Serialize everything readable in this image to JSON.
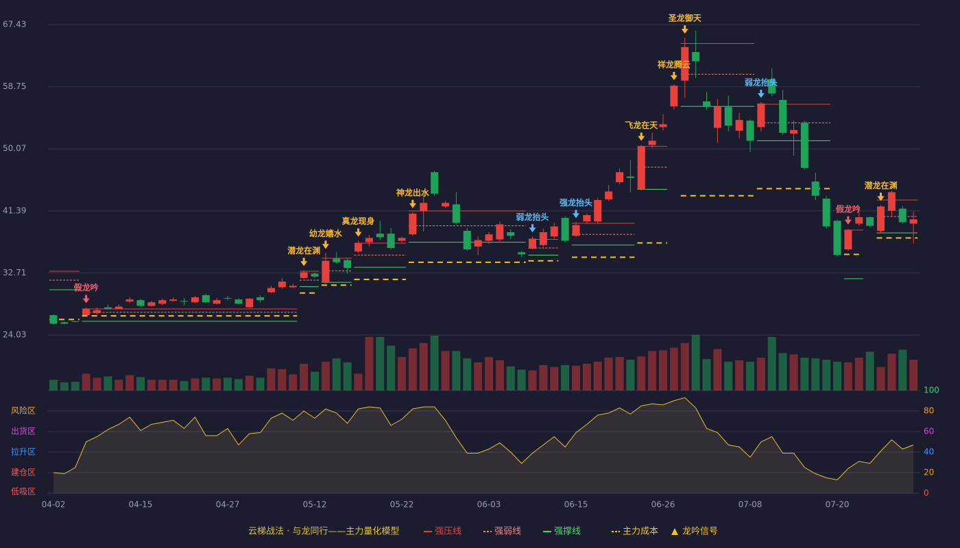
{
  "chart_data": {
    "type": "candlestick",
    "categories": [
      "04-02",
      null,
      null,
      null,
      null,
      null,
      null,
      null,
      "04-15",
      null,
      null,
      null,
      null,
      null,
      null,
      null,
      "04-27",
      null,
      null,
      null,
      null,
      null,
      null,
      null,
      "05-12",
      null,
      null,
      null,
      null,
      null,
      null,
      null,
      "05-22",
      null,
      null,
      null,
      null,
      null,
      null,
      null,
      "06-03",
      null,
      null,
      null,
      null,
      null,
      null,
      null,
      "06-15",
      null,
      null,
      null,
      null,
      null,
      null,
      null,
      "06-26",
      null,
      null,
      null,
      null,
      null,
      null,
      null,
      "07-08",
      null,
      null,
      null,
      null,
      null,
      null,
      null,
      "07-20",
      null,
      null,
      null,
      null,
      null,
      null,
      null
    ],
    "open": [
      26.8,
      25.8,
      25.95,
      26.8,
      27.1,
      27.9,
      27.7,
      28.7,
      28.9,
      28.1,
      28.4,
      28.8,
      28.8,
      28.6,
      29.6,
      28.4,
      29.2,
      29.0,
      27.9,
      29.3,
      30.0,
      30.7,
      30.7,
      32.0,
      32.6,
      31.4,
      34.7,
      34.5,
      35.7,
      37.0,
      38.2,
      38.2,
      37.2,
      38.1,
      41.4,
      46.8,
      42.0,
      42.3,
      38.6,
      36.4,
      37.2,
      37.4,
      38.4,
      35.6,
      36.1,
      36.6,
      37.8,
      40.4,
      37.9,
      39.9,
      39.9,
      43.0,
      45.4,
      46.2,
      44.4,
      50.6,
      53.1,
      56.0,
      59.6,
      63.6,
      56.7,
      53.0,
      55.9,
      52.6,
      54.0,
      53.1,
      59.8,
      56.9,
      52.2,
      53.7,
      45.5,
      43.1,
      40.0,
      36.0,
      39.6,
      40.5,
      38.6,
      41.4,
      41.7,
      39.6
    ],
    "high": [
      26.9,
      25.9,
      26.0,
      27.9,
      27.9,
      28.3,
      28.3,
      29.3,
      29.1,
      28.8,
      29.1,
      29.3,
      29.2,
      29.5,
      29.8,
      29.2,
      29.5,
      29.2,
      29.2,
      29.6,
      30.9,
      32.0,
      31.2,
      33.1,
      32.8,
      35.5,
      35.6,
      34.8,
      37.2,
      38.0,
      40.0,
      39.0,
      37.8,
      41.2,
      43.7,
      47.0,
      42.8,
      44.0,
      39.0,
      37.8,
      38.4,
      39.9,
      38.8,
      35.8,
      37.8,
      38.9,
      39.7,
      40.6,
      39.8,
      41.0,
      43.2,
      45.0,
      47.3,
      48.5,
      50.6,
      52.3,
      54.9,
      59.1,
      65.6,
      66.6,
      58.0,
      57.0,
      57.5,
      55.1,
      54.2,
      56.6,
      61.3,
      58.3,
      54.0,
      54.0,
      46.7,
      43.5,
      40.2,
      38.9,
      42.0,
      40.6,
      42.2,
      44.2,
      42.1,
      41.3
    ],
    "low": [
      25.5,
      25.5,
      25.8,
      26.7,
      26.9,
      27.6,
      27.6,
      28.5,
      27.9,
      28.0,
      28.2,
      28.7,
      28.2,
      28.5,
      28.5,
      28.3,
      28.9,
      28.3,
      27.8,
      28.6,
      29.9,
      30.5,
      30.6,
      31.9,
      32.0,
      31.2,
      34.0,
      32.6,
      35.5,
      36.4,
      37.3,
      36.0,
      37.0,
      37.9,
      38.5,
      43.5,
      41.8,
      39.5,
      35.8,
      35.2,
      36.8,
      37.0,
      37.4,
      34.9,
      36.0,
      36.4,
      37.5,
      37.0,
      37.7,
      39.7,
      39.7,
      42.8,
      45.1,
      44.0,
      44.2,
      50.2,
      52.6,
      55.6,
      57.2,
      60.0,
      55.5,
      50.9,
      52.5,
      51.5,
      49.6,
      52.5,
      57.4,
      52.0,
      49.1,
      47.2,
      42.9,
      38.9,
      35.0,
      35.8,
      39.3,
      39.1,
      38.4,
      40.6,
      39.6,
      36.8
    ],
    "close": [
      25.6,
      25.6,
      25.85,
      27.7,
      27.5,
      27.7,
      28.0,
      29.0,
      28.1,
      28.6,
      28.9,
      29.0,
      28.7,
      29.3,
      28.6,
      28.9,
      29.1,
      28.4,
      29.1,
      28.9,
      30.6,
      31.5,
      30.9,
      32.8,
      32.2,
      34.4,
      34.2,
      33.4,
      36.9,
      37.6,
      37.7,
      36.2,
      37.6,
      41.0,
      42.5,
      43.8,
      42.5,
      39.7,
      36.0,
      37.3,
      38.1,
      39.5,
      37.9,
      35.3,
      37.5,
      38.4,
      39.2,
      37.2,
      39.4,
      40.8,
      42.9,
      44.1,
      46.8,
      46.0,
      50.4,
      51.2,
      53.5,
      58.9,
      64.3,
      62.3,
      55.9,
      56.0,
      53.3,
      54.1,
      51.2,
      56.4,
      57.8,
      52.3,
      52.7,
      47.4,
      43.5,
      39.2,
      35.2,
      38.7,
      40.5,
      39.3,
      42.0,
      44.0,
      39.8,
      40.2
    ],
    "up_color": "#e8413c",
    "down_color": "#1fa35a",
    "ylim": [
      24.03,
      67.43
    ],
    "yticks": [
      24.03,
      32.71,
      41.39,
      50.07,
      58.75,
      67.43
    ],
    "grid": true,
    "volume": [
      16,
      12,
      13,
      25,
      19,
      21,
      16,
      23,
      20,
      16,
      16,
      16,
      14,
      18,
      19,
      18,
      19,
      17,
      22,
      19,
      33,
      32,
      24,
      40,
      28,
      43,
      48,
      42,
      25,
      80,
      80,
      67,
      50,
      63,
      71,
      82,
      59,
      59,
      48,
      42,
      50,
      45,
      36,
      31,
      30,
      38,
      35,
      38,
      37,
      40,
      43,
      49,
      50,
      46,
      51,
      59,
      60,
      64,
      71,
      83,
      47,
      62,
      43,
      45,
      43,
      49,
      80,
      56,
      54,
      49,
      48,
      46,
      43,
      42,
      49,
      58,
      35,
      55,
      61,
      46
    ],
    "lines": [
      {
        "name": "强压线",
        "color": "#e8413c",
        "dashed": false,
        "segments": [
          {
            "from": 0,
            "to": 2,
            "value": 32.94
          },
          {
            "from": 3,
            "to": 22,
            "value": 27.67
          },
          {
            "from": 23,
            "to": 24,
            "value": 32.94
          },
          {
            "from": 25,
            "to": 27,
            "value": 34.76
          },
          {
            "from": 28,
            "to": 32,
            "value": 36.87
          },
          {
            "from": 33,
            "to": 43,
            "value": 41.37
          },
          {
            "from": 44,
            "to": 46,
            "value": 37.4
          },
          {
            "from": 48,
            "to": 53,
            "value": 39.65
          },
          {
            "from": 54,
            "to": 56,
            "value": 50.4
          },
          {
            "from": 58,
            "to": 64,
            "value": 64.8
          },
          {
            "from": 65,
            "to": 71,
            "value": 56.3
          },
          {
            "from": 73,
            "to": 74,
            "value": 38.7
          },
          {
            "from": 76,
            "to": 79,
            "value": 42.9
          }
        ]
      },
      {
        "name": "强弱线",
        "color": "#f08080",
        "dashed": true,
        "segments": [
          {
            "from": 0,
            "to": 2,
            "value": 31.7
          },
          {
            "from": 3,
            "to": 22,
            "value": 27.2
          },
          {
            "from": 23,
            "to": 24,
            "value": 31.7
          },
          {
            "from": 25,
            "to": 27,
            "value": 33.0
          },
          {
            "from": 28,
            "to": 32,
            "value": 35.2
          },
          {
            "from": 33,
            "to": 43,
            "value": 39.3
          },
          {
            "from": 44,
            "to": 46,
            "value": 36.2
          },
          {
            "from": 48,
            "to": 53,
            "value": 38.1
          },
          {
            "from": 54,
            "to": 56,
            "value": 47.5
          },
          {
            "from": 58,
            "to": 64,
            "value": 60.5
          },
          {
            "from": 65,
            "to": 71,
            "value": 53.7
          },
          {
            "from": 76,
            "to": 79,
            "value": 40.6
          }
        ]
      },
      {
        "name": "强撑线",
        "color": "#45d66f",
        "dashed": false,
        "segments": [
          {
            "from": 0,
            "to": 2,
            "value": 30.35
          },
          {
            "from": 3,
            "to": 22,
            "value": 25.95
          },
          {
            "from": 23,
            "to": 24,
            "value": 30.8
          },
          {
            "from": 25,
            "to": 27,
            "value": 31.4
          },
          {
            "from": 28,
            "to": 32,
            "value": 33.5
          },
          {
            "from": 33,
            "to": 43,
            "value": 37.0
          },
          {
            "from": 44,
            "to": 46,
            "value": 35.2
          },
          {
            "from": 48,
            "to": 53,
            "value": 36.6
          },
          {
            "from": 54,
            "to": 56,
            "value": 44.4
          },
          {
            "from": 58,
            "to": 64,
            "value": 56.0
          },
          {
            "from": 65,
            "to": 71,
            "value": 51.2
          },
          {
            "from": 73,
            "to": 74,
            "value": 31.9
          },
          {
            "from": 76,
            "to": 79,
            "value": 38.3
          }
        ]
      },
      {
        "name": "主力成本",
        "color": "#f5c518",
        "dashed": true,
        "segments": [
          {
            "from": 0,
            "to": 2,
            "value": 26.2
          },
          {
            "from": 3,
            "to": 22,
            "value": 26.7
          },
          {
            "from": 23,
            "to": 24,
            "value": 29.9
          },
          {
            "from": 25,
            "to": 27,
            "value": 31.0
          },
          {
            "from": 28,
            "to": 32,
            "value": 31.8
          },
          {
            "from": 33,
            "to": 43,
            "value": 34.2
          },
          {
            "from": 44,
            "to": 46,
            "value": 34.4
          },
          {
            "from": 48,
            "to": 53,
            "value": 34.9
          },
          {
            "from": 54,
            "to": 56,
            "value": 36.9
          },
          {
            "from": 58,
            "to": 64,
            "value": 43.5
          },
          {
            "from": 65,
            "to": 71,
            "value": 44.5
          },
          {
            "from": 73,
            "to": 74,
            "value": 35.3
          },
          {
            "from": 76,
            "to": 79,
            "value": 37.6
          }
        ]
      }
    ],
    "signals": [
      {
        "index": 3,
        "label": "假龙吟",
        "color": "#f0606a"
      },
      {
        "index": 23,
        "label": "潜龙在渊",
        "color": "#f5b82e"
      },
      {
        "index": 25,
        "label": "幼龙嬉水",
        "color": "#f5b82e"
      },
      {
        "index": 28,
        "label": "真龙现身",
        "color": "#f5b82e"
      },
      {
        "index": 33,
        "label": "神龙出水",
        "color": "#f5b82e"
      },
      {
        "index": 44,
        "label": "弱龙抬头",
        "color": "#5bb8f5"
      },
      {
        "index": 48,
        "label": "强龙抬头",
        "color": "#5bb8f5"
      },
      {
        "index": 54,
        "label": "飞龙在天",
        "color": "#f5b82e"
      },
      {
        "index": 57,
        "label": "祥龙腾云",
        "color": "#f5b82e"
      },
      {
        "index": 58,
        "label": "圣龙御天",
        "color": "#f5b82e"
      },
      {
        "index": 65,
        "label": "弱龙抬头",
        "color": "#5bb8f5"
      },
      {
        "index": 73,
        "label": "假龙吟",
        "color": "#f0606a"
      },
      {
        "index": 76,
        "label": "潜龙在渊",
        "color": "#f5b82e"
      }
    ],
    "signal_legend": "龙吟信号",
    "signal_legend_color": "#f5c518",
    "legend_title": "云梯战法 · 与龙同行——主力量化模型",
    "indicator": {
      "values": [
        20,
        19,
        25,
        50,
        55,
        62,
        67,
        74,
        61,
        67,
        69,
        71,
        63,
        74,
        56,
        56,
        63,
        47,
        58,
        59,
        73,
        78,
        71,
        80,
        73,
        82,
        78,
        68,
        82,
        84,
        83,
        66,
        72,
        82,
        84,
        84,
        71,
        54,
        39,
        39,
        43,
        49,
        40,
        29,
        39,
        47,
        55,
        45,
        59,
        67,
        76,
        78,
        83,
        77,
        85,
        87,
        86,
        90,
        93,
        83,
        63,
        59,
        47,
        45,
        35,
        50,
        55,
        39,
        39,
        25,
        19,
        15,
        13,
        24,
        31,
        29,
        41,
        52,
        43,
        47
      ],
      "color": "#e5c22a",
      "ylim": [
        0,
        100
      ],
      "yticks": [
        0,
        20,
        40,
        60,
        80,
        100
      ],
      "ytick_colors": [
        "#ff4d4d",
        "#f0a020",
        "#4090ff",
        "#e040e0",
        "#f0a020",
        "#3fd07a"
      ],
      "zones": [
        {
          "label": "风险区",
          "value": 80,
          "color": "#f0a020"
        },
        {
          "label": "出货区",
          "value": 60,
          "color": "#e040e0"
        },
        {
          "label": "拉升区",
          "value": 40,
          "color": "#4090ff"
        },
        {
          "label": "建仓区",
          "value": 20,
          "color": "#ff5050"
        },
        {
          "label": "低吸区",
          "value": 0,
          "color": "#ff5050"
        }
      ]
    }
  }
}
